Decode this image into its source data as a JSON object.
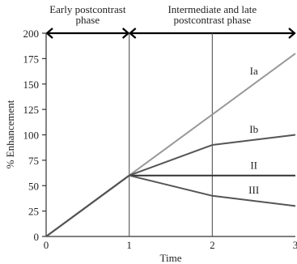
{
  "chart_data": {
    "type": "line",
    "xlabel": "Time",
    "ylabel": "% Enhancement",
    "xlim": [
      0,
      3
    ],
    "ylim": [
      0,
      200
    ],
    "x_ticks": [
      0,
      1,
      2,
      3
    ],
    "y_ticks": [
      0,
      25,
      50,
      75,
      100,
      125,
      150,
      175,
      200
    ],
    "grid": false,
    "vertical_lines": [
      1,
      2
    ],
    "phases": [
      {
        "label_lines": [
          "Early postcontrast",
          "phase"
        ],
        "x_range": [
          0,
          1
        ]
      },
      {
        "label_lines": [
          "Intermediate and late",
          "postcontrast phase"
        ],
        "x_range": [
          1,
          3
        ]
      }
    ],
    "series": [
      {
        "name": "Ia",
        "color": "#999999",
        "x": [
          0,
          1,
          2,
          3
        ],
        "y": [
          0,
          60,
          120,
          180
        ]
      },
      {
        "name": "Ib",
        "color": "#555555",
        "x": [
          0,
          1,
          2,
          3
        ],
        "y": [
          0,
          60,
          90,
          100
        ]
      },
      {
        "name": "II",
        "color": "#333333",
        "x": [
          0,
          1,
          2,
          3
        ],
        "y": [
          0,
          60,
          60,
          60
        ]
      },
      {
        "name": "III",
        "color": "#555555",
        "x": [
          0,
          1,
          2,
          3
        ],
        "y": [
          0,
          60,
          40,
          30
        ]
      }
    ]
  }
}
